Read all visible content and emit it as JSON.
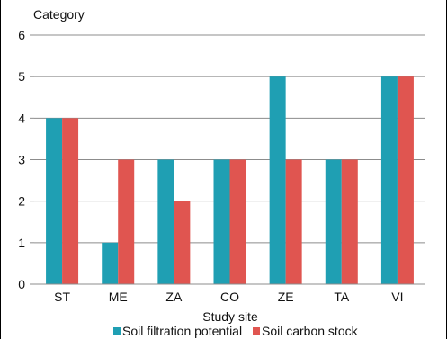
{
  "chart_data": {
    "type": "bar",
    "title": "",
    "ylabel": "Category",
    "xlabel": "Study site",
    "categories": [
      "ST",
      "ME",
      "ZA",
      "CO",
      "ZE",
      "TA",
      "VI"
    ],
    "series": [
      {
        "name": "Soil filtration potential",
        "color": "#1f9fb3",
        "values": [
          4,
          1,
          3,
          3,
          5,
          3,
          5
        ]
      },
      {
        "name": "Soil carbon stock",
        "color": "#e05550",
        "values": [
          4,
          3,
          2,
          3,
          3,
          3,
          5
        ]
      }
    ],
    "ylim": [
      0,
      6
    ],
    "yticks": [
      0,
      1,
      2,
      3,
      4,
      5,
      6
    ],
    "grid": true,
    "legend_position": "bottom"
  }
}
